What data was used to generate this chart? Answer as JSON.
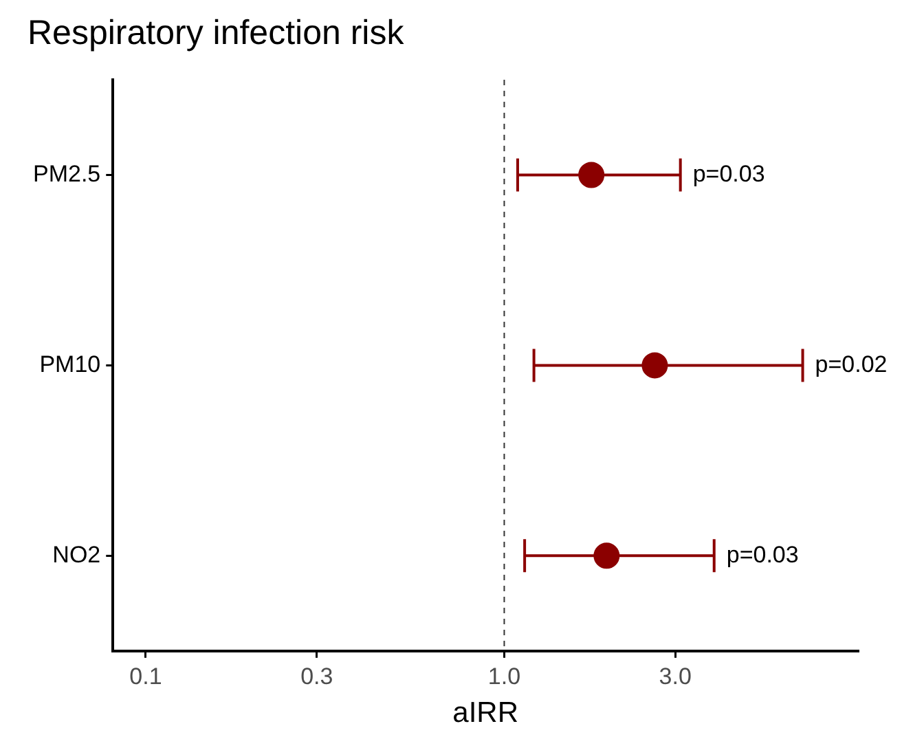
{
  "chart_data": {
    "type": "scatter",
    "orientation": "horizontal",
    "title": "Respiratory infection risk",
    "xlabel": "aIRR",
    "categories": [
      "PM2.5",
      "PM10",
      "NO2"
    ],
    "series": [
      {
        "color": "#8b0000",
        "values": [
          1.75,
          2.63,
          1.93
        ],
        "errors": [
          [
            1.09,
            3.1
          ],
          [
            1.21,
            6.8
          ],
          [
            1.14,
            3.85
          ]
        ]
      }
    ],
    "annotations": [
      {
        "text": "p=0.03",
        "x": 3.1,
        "y": "PM2.5"
      },
      {
        "text": "p=0.02",
        "x": 6.8,
        "y": "PM10"
      },
      {
        "text": "p=0.03",
        "x": 3.85,
        "y": "NO2"
      }
    ],
    "log": "x",
    "xlim": [
      0.081,
      9.7
    ],
    "xticks": [
      0.1,
      0.3,
      {
        "value": 1,
        "label": "1.0"
      },
      {
        "value": 3,
        "label": "3.0"
      }
    ],
    "ref_lines": [
      {
        "axis": "x",
        "value": 1,
        "line_style": "dashed",
        "color": "#333333"
      }
    ],
    "grid": false,
    "legend": false,
    "marker": "circle"
  }
}
